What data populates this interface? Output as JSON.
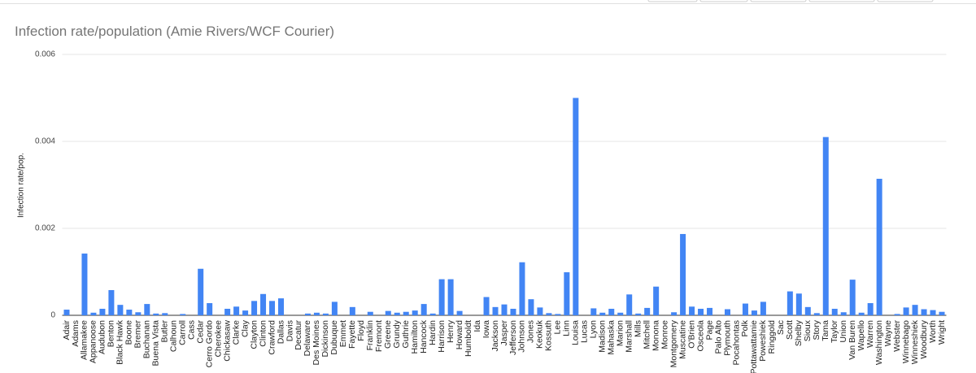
{
  "chart_data": {
    "type": "bar",
    "title": "Infection rate/population (Amie Rivers/WCF Courier)",
    "y_label": "Infection rate/pop.",
    "categories": [
      "Adair",
      "Adams",
      "Allamakee",
      "Appanoose",
      "Audubon",
      "Benton",
      "Black Hawk",
      "Boone",
      "Bremer",
      "Buchanan",
      "Buena Vista",
      "Butler",
      "Calhoun",
      "Carroll",
      "Cass",
      "Cedar",
      "Cerro Gordo",
      "Cherokee",
      "Chickasaw",
      "Clarke",
      "Clay",
      "Clayton",
      "Clinton",
      "Crawford",
      "Dallas",
      "Davis",
      "Decatur",
      "Delaware",
      "Des Moines",
      "Dickinson",
      "Dubuque",
      "Emmet",
      "Fayette",
      "Floyd",
      "Franklin",
      "Fremont",
      "Greene",
      "Grundy",
      "Guthrie",
      "Hamilton",
      "Hancock",
      "Hardin",
      "Harrison",
      "Henry",
      "Howard",
      "Humboldt",
      "Ida",
      "Iowa",
      "Jackson",
      "Jasper",
      "Jefferson",
      "Johnson",
      "Jones",
      "Keokuk",
      "Kossuth",
      "Lee",
      "Linn",
      "Louisa",
      "Lucas",
      "Lyon",
      "Madison",
      "Mahaska",
      "Marion",
      "Marshall",
      "Mills",
      "Mitchell",
      "Monona",
      "Monroe",
      "Montgomery",
      "Muscatine",
      "O'Brien",
      "Osceola",
      "Page",
      "Palo Alto",
      "Plymouth",
      "Pocahontas",
      "Polk",
      "Pottawattamie",
      "Poweshiek",
      "Ringgold",
      "Sac",
      "Scott",
      "Shelby",
      "Sioux",
      "Story",
      "Tama",
      "Taylor",
      "Union",
      "Van Buren",
      "Wapello",
      "Warren",
      "Washington",
      "Wayne",
      "Webster",
      "Winnebago",
      "Winneshiek",
      "Woodbury",
      "Worth",
      "Wright"
    ],
    "values": [
      0.00013,
      0,
      0.00142,
      6e-05,
      0.00015,
      0.00058,
      0.00024,
      0.00013,
      7e-05,
      0.00026,
      4e-05,
      5e-05,
      0,
      3e-05,
      0,
      0.00107,
      0.00028,
      0,
      0.00015,
      0.0002,
      0.00011,
      0.00033,
      0.00049,
      0.00033,
      0.00039,
      0,
      0,
      4e-05,
      6e-05,
      4e-05,
      0.00031,
      0,
      0.00019,
      0,
      8e-05,
      0,
      0.0001,
      6e-05,
      8e-05,
      0.00011,
      0.00026,
      4e-05,
      0.00083,
      0.00083,
      0.0001,
      0,
      0,
      0.00042,
      0.00019,
      0.00025,
      0.00015,
      0.00122,
      0.00037,
      0.00018,
      5e-05,
      3e-05,
      0.00099,
      0.005,
      0,
      0.00016,
      6e-05,
      0.00015,
      6e-05,
      0.00048,
      4e-05,
      0.00017,
      0.00066,
      0,
      7e-05,
      0.00187,
      0.0002,
      0.00015,
      0.00017,
      0,
      0.00014,
      0,
      0.00027,
      0.00011,
      0.00031,
      0,
      0,
      0.00055,
      0.0005,
      0.00019,
      5e-05,
      0.0041,
      0.00015,
      7e-05,
      0.00082,
      6e-05,
      0.00028,
      0.00314,
      0,
      3e-05,
      0.00018,
      0.00024,
      0.00014,
      0.00012,
      8e-05
    ],
    "color": "#4285f4",
    "ylim": [
      0,
      0.006
    ],
    "yticks": [
      0,
      0.002,
      0.004,
      0.006
    ],
    "grid": true
  }
}
